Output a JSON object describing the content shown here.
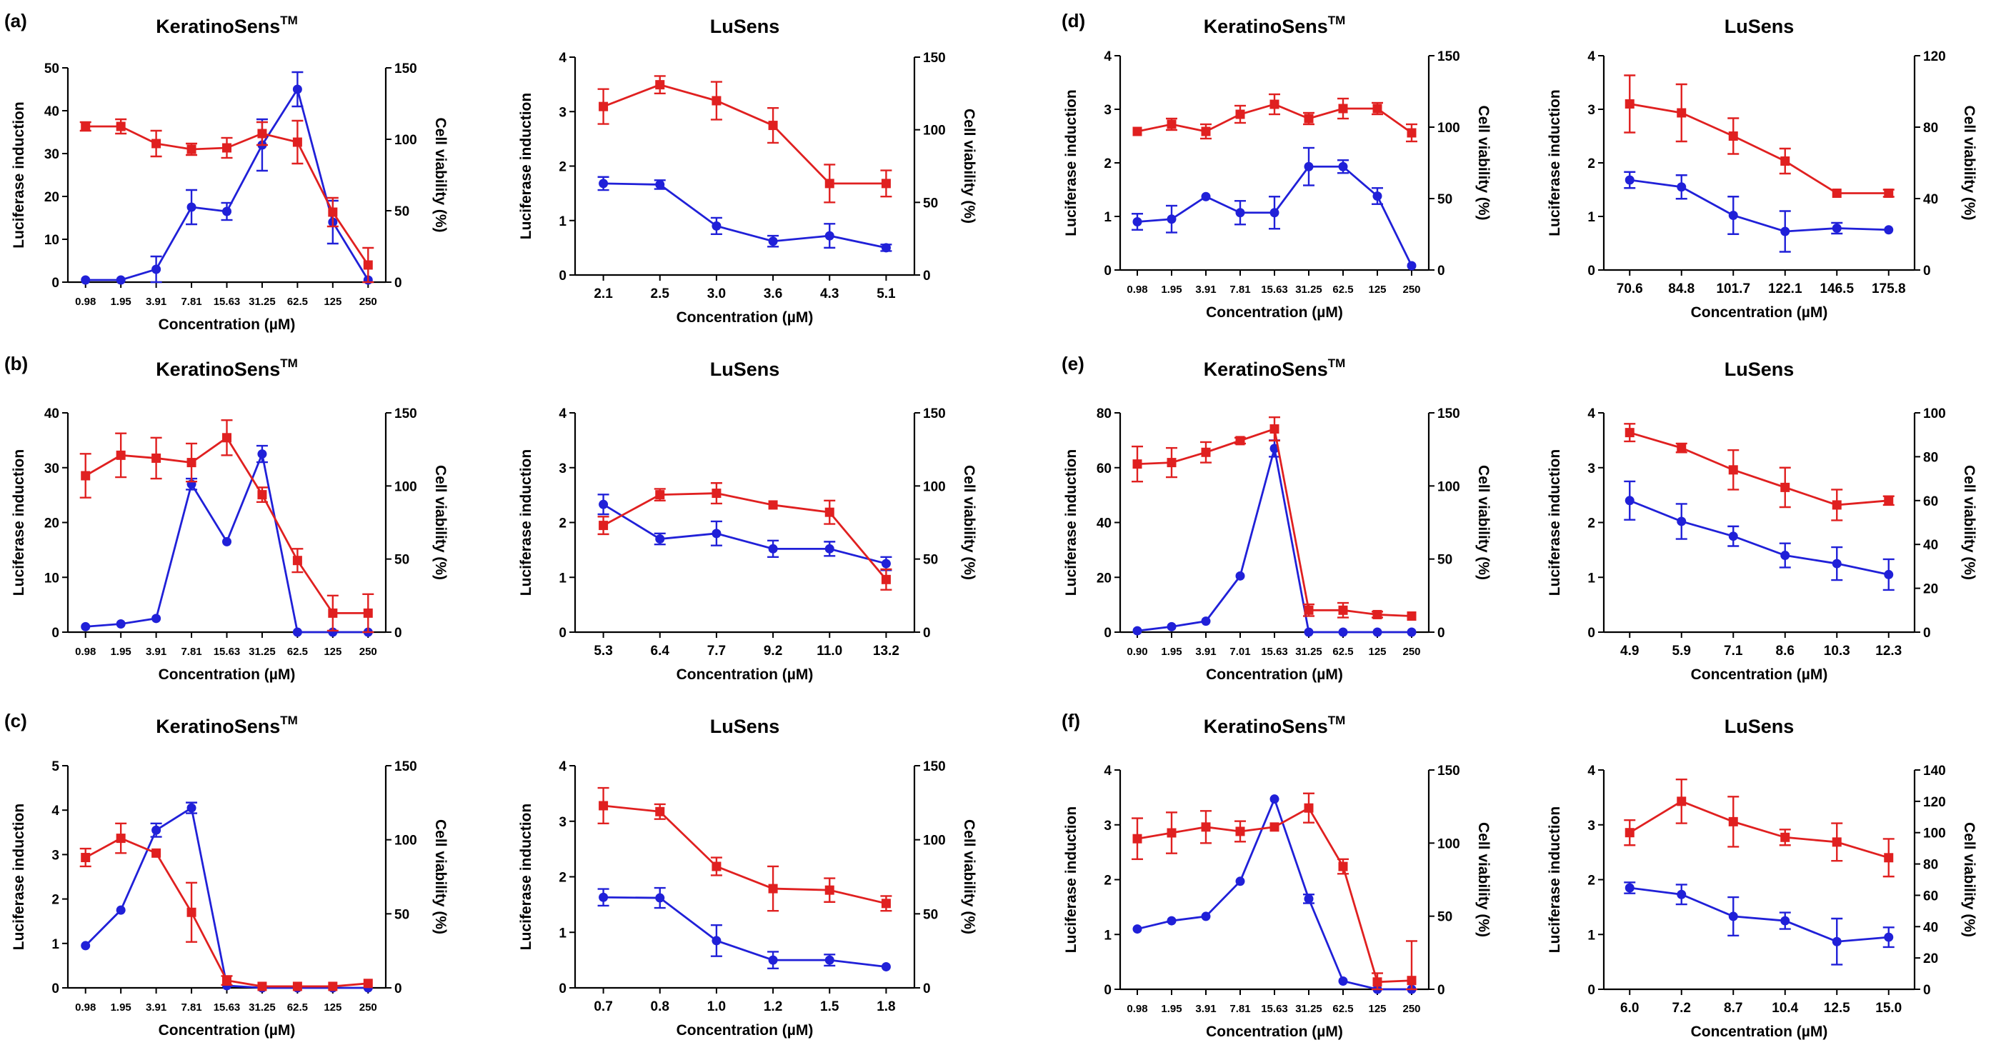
{
  "colors": {
    "induction": "#2020d8",
    "viability": "#e02020"
  },
  "common": {
    "xlabel": "Concentration (µM)",
    "ylabel_left": "Luciferase induction",
    "ylabel_right": "Cell viability (%)"
  },
  "chart_data": [
    {
      "id": "a-keratino",
      "panel_label": "(a)",
      "type": "line",
      "title": "KeratinoSens",
      "title_sup": "TM",
      "categories": [
        "0.98",
        "1.95",
        "3.91",
        "7.81",
        "15.63",
        "31.25",
        "62.5",
        "125",
        "250"
      ],
      "ylim_left": [
        0,
        50
      ],
      "yticks_left": [
        0,
        10,
        20,
        30,
        40,
        50
      ],
      "ylim_right": [
        0,
        150
      ],
      "yticks_right": [
        0,
        50,
        100,
        150
      ],
      "series": [
        {
          "name": "Luciferase induction",
          "axis": "left",
          "color_key": "induction",
          "marker": "circle",
          "values": [
            0.5,
            0.5,
            3,
            17.5,
            16.5,
            32,
            45,
            14,
            0.5
          ],
          "errors": [
            0,
            0,
            3,
            4,
            2,
            6,
            4,
            5,
            0
          ]
        },
        {
          "name": "Cell viability (%)",
          "axis": "right",
          "color_key": "viability",
          "marker": "square",
          "values": [
            109,
            109,
            97,
            93,
            94,
            104,
            98,
            49,
            12
          ],
          "errors": [
            3,
            5,
            9,
            4,
            7,
            8,
            15,
            10,
            12
          ]
        }
      ]
    },
    {
      "id": "a-lusens",
      "panel_label": "",
      "type": "line",
      "title": "LuSens",
      "title_sup": "",
      "categories": [
        "2.1",
        "2.5",
        "3.0",
        "3.6",
        "4.3",
        "5.1"
      ],
      "ylim_left": [
        0,
        4
      ],
      "yticks_left": [
        0,
        1,
        2,
        3,
        4
      ],
      "ylim_right": [
        0,
        150
      ],
      "yticks_right": [
        0,
        50,
        100,
        150
      ],
      "series": [
        {
          "name": "Luciferase induction",
          "axis": "left",
          "color_key": "induction",
          "marker": "circle",
          "values": [
            1.68,
            1.66,
            0.9,
            0.62,
            0.72,
            0.5
          ],
          "errors": [
            0.12,
            0.08,
            0.15,
            0.1,
            0.22,
            0.06
          ]
        },
        {
          "name": "Cell viability (%)",
          "axis": "right",
          "color_key": "viability",
          "marker": "square",
          "values": [
            116,
            131,
            120,
            103,
            63,
            63
          ],
          "errors": [
            12,
            6,
            13,
            12,
            13,
            9
          ]
        }
      ]
    },
    {
      "id": "d-keratino",
      "panel_label": "(d)",
      "type": "line",
      "title": "KeratinoSens",
      "title_sup": "TM",
      "categories": [
        "0.98",
        "1.95",
        "3.91",
        "7.81",
        "15.63",
        "31.25",
        "62.5",
        "125",
        "250"
      ],
      "ylim_left": [
        0,
        4
      ],
      "yticks_left": [
        0,
        1,
        2,
        3,
        4
      ],
      "ylim_right": [
        0,
        150
      ],
      "yticks_right": [
        0,
        50,
        100,
        150
      ],
      "series": [
        {
          "name": "Luciferase induction",
          "axis": "left",
          "color_key": "induction",
          "marker": "circle",
          "values": [
            0.9,
            0.95,
            1.37,
            1.07,
            1.07,
            1.93,
            1.93,
            1.38,
            0.08
          ],
          "errors": [
            0.15,
            0.25,
            0,
            0.22,
            0.3,
            0.35,
            0.12,
            0.15,
            0
          ]
        },
        {
          "name": "Cell viability (%)",
          "axis": "right",
          "color_key": "viability",
          "marker": "square",
          "values": [
            97,
            102,
            97,
            109,
            116,
            106,
            113,
            113,
            96
          ],
          "errors": [
            0,
            4,
            5,
            6,
            7,
            4,
            7,
            4,
            6
          ]
        }
      ]
    },
    {
      "id": "d-lusens",
      "panel_label": "",
      "type": "line",
      "title": "LuSens",
      "title_sup": "",
      "categories": [
        "70.6",
        "84.8",
        "101.7",
        "122.1",
        "146.5",
        "175.8"
      ],
      "ylim_left": [
        0,
        4
      ],
      "yticks_left": [
        0,
        1,
        2,
        3,
        4
      ],
      "ylim_right": [
        0,
        120
      ],
      "yticks_right": [
        0,
        40,
        80,
        120
      ],
      "series": [
        {
          "name": "Luciferase induction",
          "axis": "left",
          "color_key": "induction",
          "marker": "circle",
          "values": [
            1.68,
            1.55,
            1.02,
            0.72,
            0.78,
            0.75
          ],
          "errors": [
            0.15,
            0.22,
            0.35,
            0.38,
            0.1,
            0
          ]
        },
        {
          "name": "Cell viability (%)",
          "axis": "right",
          "color_key": "viability",
          "marker": "square",
          "values": [
            93,
            88,
            75,
            61,
            43,
            43
          ],
          "errors": [
            16,
            16,
            10,
            7,
            0,
            2
          ]
        }
      ]
    },
    {
      "id": "b-keratino",
      "panel_label": "(b)",
      "type": "line",
      "title": "KeratinoSens",
      "title_sup": "TM",
      "categories": [
        "0.98",
        "1.95",
        "3.91",
        "7.81",
        "15.63",
        "31.25",
        "62.5",
        "125",
        "250"
      ],
      "ylim_left": [
        0,
        40
      ],
      "yticks_left": [
        0,
        10,
        20,
        30,
        40
      ],
      "ylim_right": [
        0,
        150
      ],
      "yticks_right": [
        0,
        50,
        100,
        150
      ],
      "series": [
        {
          "name": "Luciferase induction",
          "axis": "left",
          "color_key": "induction",
          "marker": "circle",
          "values": [
            1,
            1.5,
            2.5,
            27,
            16.5,
            32.5,
            0,
            0,
            0
          ],
          "errors": [
            0,
            0,
            0,
            1,
            0,
            1.5,
            0,
            0,
            0
          ]
        },
        {
          "name": "Cell viability (%)",
          "axis": "right",
          "color_key": "viability",
          "marker": "square",
          "values": [
            107,
            121,
            119,
            116,
            133,
            94,
            49,
            13,
            13
          ],
          "errors": [
            15,
            15,
            14,
            13,
            12,
            5,
            8,
            12,
            13
          ]
        }
      ]
    },
    {
      "id": "b-lusens",
      "panel_label": "",
      "type": "line",
      "title": "LuSens",
      "title_sup": "",
      "categories": [
        "5.3",
        "6.4",
        "7.7",
        "9.2",
        "11.0",
        "13.2"
      ],
      "ylim_left": [
        0,
        4
      ],
      "yticks_left": [
        0,
        1,
        2,
        3,
        4
      ],
      "ylim_right": [
        0,
        150
      ],
      "yticks_right": [
        0,
        50,
        100,
        150
      ],
      "series": [
        {
          "name": "Luciferase induction",
          "axis": "left",
          "color_key": "induction",
          "marker": "circle",
          "values": [
            2.33,
            1.7,
            1.8,
            1.52,
            1.52,
            1.25
          ],
          "errors": [
            0.18,
            0.1,
            0.22,
            0.15,
            0.13,
            0.12
          ]
        },
        {
          "name": "Cell viability (%)",
          "axis": "right",
          "color_key": "viability",
          "marker": "square",
          "values": [
            73,
            94,
            95,
            87,
            82,
            36
          ],
          "errors": [
            6,
            4,
            7,
            0,
            8,
            7
          ]
        }
      ]
    },
    {
      "id": "e-keratino",
      "panel_label": "(e)",
      "type": "line",
      "title": "KeratinoSens",
      "title_sup": "TM",
      "categories": [
        "0.90",
        "1.95",
        "3.91",
        "7.01",
        "15.63",
        "31.25",
        "62.5",
        "125",
        "250"
      ],
      "ylim_left": [
        0,
        80
      ],
      "yticks_left": [
        0,
        20,
        40,
        60,
        80
      ],
      "ylim_right": [
        0,
        150
      ],
      "yticks_right": [
        0,
        50,
        100,
        150
      ],
      "series": [
        {
          "name": "Luciferase induction",
          "axis": "left",
          "color_key": "induction",
          "marker": "circle",
          "values": [
            0.5,
            2,
            4,
            20.5,
            67,
            0,
            0,
            0,
            0
          ],
          "errors": [
            0,
            0,
            0,
            0,
            3,
            0,
            0,
            0,
            0
          ]
        },
        {
          "name": "Cell viability (%)",
          "axis": "right",
          "color_key": "viability",
          "marker": "square",
          "values": [
            115,
            116,
            123,
            131,
            139,
            15,
            15,
            12,
            11
          ],
          "errors": [
            12,
            10,
            7,
            2,
            8,
            4,
            5,
            2,
            0
          ]
        }
      ]
    },
    {
      "id": "e-lusens",
      "panel_label": "",
      "type": "line",
      "title": "LuSens",
      "title_sup": "",
      "categories": [
        "4.9",
        "5.9",
        "7.1",
        "8.6",
        "10.3",
        "12.3"
      ],
      "ylim_left": [
        0,
        4
      ],
      "yticks_left": [
        0,
        1,
        2,
        3,
        4
      ],
      "ylim_right": [
        0,
        100
      ],
      "yticks_right": [
        0,
        20,
        40,
        60,
        80,
        100
      ],
      "series": [
        {
          "name": "Luciferase induction",
          "axis": "left",
          "color_key": "induction",
          "marker": "circle",
          "values": [
            2.4,
            2.02,
            1.75,
            1.4,
            1.25,
            1.05
          ],
          "errors": [
            0.35,
            0.32,
            0.18,
            0.22,
            0.3,
            0.28
          ]
        },
        {
          "name": "Cell viability (%)",
          "axis": "right",
          "color_key": "viability",
          "marker": "square",
          "values": [
            91,
            84,
            74,
            66,
            58,
            60
          ],
          "errors": [
            4,
            2,
            9,
            9,
            7,
            2
          ]
        }
      ]
    },
    {
      "id": "c-keratino",
      "panel_label": "(c)",
      "type": "line",
      "title": "KeratinoSens",
      "title_sup": "TM",
      "categories": [
        "0.98",
        "1.95",
        "3.91",
        "7.81",
        "15.63",
        "31.25",
        "62.5",
        "125",
        "250"
      ],
      "ylim_left": [
        0,
        5
      ],
      "yticks_left": [
        0,
        1,
        2,
        3,
        4,
        5
      ],
      "ylim_right": [
        0,
        150
      ],
      "yticks_right": [
        0,
        50,
        100,
        150
      ],
      "series": [
        {
          "name": "Luciferase induction",
          "axis": "left",
          "color_key": "induction",
          "marker": "circle",
          "values": [
            0.95,
            1.75,
            3.55,
            4.05,
            0.05,
            0,
            0,
            0,
            0
          ],
          "errors": [
            0,
            0,
            0.15,
            0.12,
            0,
            0,
            0,
            0,
            0
          ]
        },
        {
          "name": "Cell viability (%)",
          "axis": "right",
          "color_key": "viability",
          "marker": "square",
          "values": [
            88,
            101,
            91,
            51,
            5,
            1,
            1,
            1,
            3
          ],
          "errors": [
            6,
            10,
            0,
            20,
            3,
            0,
            0,
            0,
            0
          ]
        }
      ]
    },
    {
      "id": "c-lusens",
      "panel_label": "",
      "type": "line",
      "title": "LuSens",
      "title_sup": "",
      "categories": [
        "0.7",
        "0.8",
        "1.0",
        "1.2",
        "1.5",
        "1.8"
      ],
      "ylim_left": [
        0,
        4
      ],
      "yticks_left": [
        0,
        1,
        2,
        3,
        4
      ],
      "ylim_right": [
        0,
        150
      ],
      "yticks_right": [
        0,
        50,
        100,
        150
      ],
      "series": [
        {
          "name": "Luciferase induction",
          "axis": "left",
          "color_key": "induction",
          "marker": "circle",
          "values": [
            1.63,
            1.62,
            0.85,
            0.5,
            0.5,
            0.38
          ],
          "errors": [
            0.15,
            0.18,
            0.28,
            0.15,
            0.1,
            0
          ]
        },
        {
          "name": "Cell viability (%)",
          "axis": "right",
          "color_key": "viability",
          "marker": "square",
          "values": [
            123,
            119,
            82,
            67,
            66,
            57
          ],
          "errors": [
            12,
            5,
            6,
            15,
            8,
            5
          ]
        }
      ]
    },
    {
      "id": "f-keratino",
      "panel_label": "(f)",
      "type": "line",
      "title": "KeratinoSens",
      "title_sup": "TM",
      "categories": [
        "0.98",
        "1.95",
        "3.91",
        "7.81",
        "15.63",
        "31.25",
        "62.5",
        "125",
        "250"
      ],
      "ylim_left": [
        0,
        4
      ],
      "yticks_left": [
        0,
        1,
        2,
        3,
        4
      ],
      "ylim_right": [
        0,
        150
      ],
      "yticks_right": [
        0,
        50,
        100,
        150
      ],
      "series": [
        {
          "name": "Luciferase induction",
          "axis": "left",
          "color_key": "induction",
          "marker": "circle",
          "values": [
            1.1,
            1.25,
            1.33,
            1.97,
            3.47,
            1.65,
            0.15,
            0,
            0
          ],
          "errors": [
            0,
            0,
            0,
            0,
            0,
            0.08,
            0,
            0,
            0
          ]
        },
        {
          "name": "Cell viability (%)",
          "axis": "right",
          "color_key": "viability",
          "marker": "square",
          "values": [
            103,
            107,
            111,
            108,
            111,
            124,
            84,
            5,
            6
          ],
          "errors": [
            14,
            14,
            11,
            7,
            0,
            10,
            5,
            6,
            27
          ]
        }
      ]
    },
    {
      "id": "f-lusens",
      "panel_label": "",
      "type": "line",
      "title": "LuSens",
      "title_sup": "",
      "categories": [
        "6.0",
        "7.2",
        "8.7",
        "10.4",
        "12.5",
        "15.0"
      ],
      "ylim_left": [
        0,
        4
      ],
      "yticks_left": [
        0,
        1,
        2,
        3,
        4
      ],
      "ylim_right": [
        0,
        140
      ],
      "yticks_right": [
        0,
        20,
        40,
        60,
        80,
        100,
        120,
        140
      ],
      "series": [
        {
          "name": "Luciferase induction",
          "axis": "left",
          "color_key": "induction",
          "marker": "circle",
          "values": [
            1.85,
            1.73,
            1.33,
            1.25,
            0.87,
            0.95
          ],
          "errors": [
            0.1,
            0.18,
            0.35,
            0.15,
            0.42,
            0.18
          ]
        },
        {
          "name": "Cell viability (%)",
          "axis": "right",
          "color_key": "viability",
          "marker": "square",
          "values": [
            100,
            120,
            107,
            97,
            94,
            84
          ],
          "errors": [
            8,
            14,
            16,
            5,
            12,
            12
          ]
        }
      ]
    }
  ]
}
